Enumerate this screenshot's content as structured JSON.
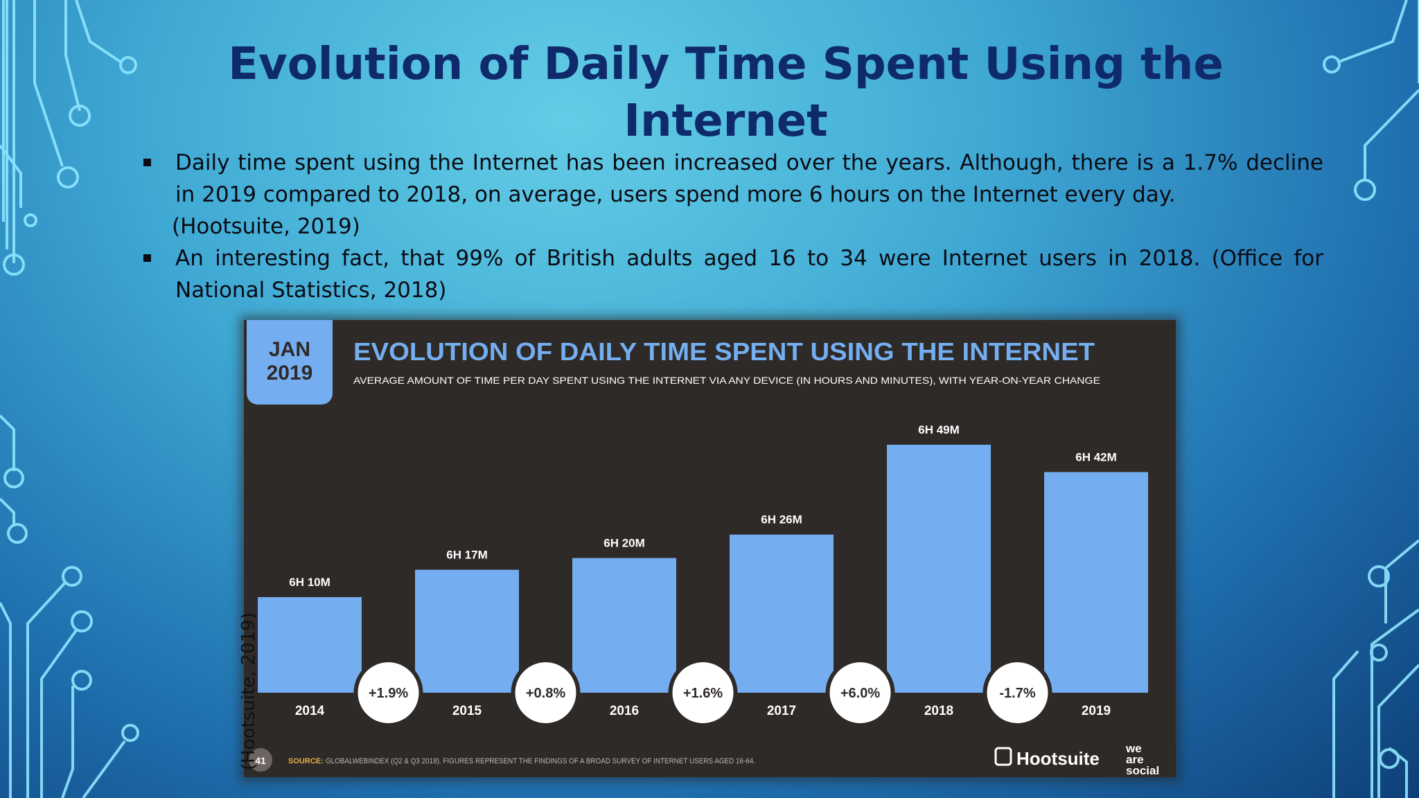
{
  "slide": {
    "title": "Evolution of Daily Time Spent Using the Internet",
    "bullets": [
      {
        "line1": "Daily time spent using the Internet has been increased over the years. Although, there is a 1.7% decline in 2019 compared to 2018, on average, users spend more 6 hours on the Internet every day.",
        "line2": "(Hootsuite, 2019)"
      },
      {
        "line1": "An interesting fact, that 99% of British adults aged 16 to 34 were Internet users in 2018. (Office for National Statistics, 2018)"
      }
    ],
    "vertical_caption": "(Hootsuite, 2019)"
  },
  "chart_data": {
    "type": "bar",
    "badge": {
      "line1": "JAN",
      "line2": "2019"
    },
    "title": "EVOLUTION OF DAILY TIME SPENT USING THE INTERNET",
    "subtitle": "AVERAGE AMOUNT OF TIME PER DAY SPENT USING THE INTERNET VIA ANY DEVICE (IN HOURS AND MINUTES), WITH YEAR-ON-YEAR CHANGE",
    "categories": [
      "2014",
      "2015",
      "2016",
      "2017",
      "2018",
      "2019"
    ],
    "values_minutes": [
      370,
      377,
      380,
      386,
      409,
      402
    ],
    "value_labels": [
      "6H 10M",
      "6H 17M",
      "6H 20M",
      "6H 26M",
      "6H 49M",
      "6H 42M"
    ],
    "changes": [
      "+1.9%",
      "+0.8%",
      "+1.6%",
      "+6.0%",
      "-1.7%"
    ],
    "page_number": "41",
    "source_label": "SOURCE:",
    "source_text": "GLOBALWEBINDEX (Q2 & Q3 2018). FIGURES REPRESENT THE FINDINGS OF A BROAD SURVEY OF INTERNET USERS AGED 16-64.",
    "brand": "Hootsuite",
    "brand2": [
      "we",
      "are",
      "social"
    ],
    "colors": {
      "bar": "#74aef0",
      "background": "#2e2a28",
      "badge": "#74aef0",
      "text": "#ffffff"
    }
  }
}
